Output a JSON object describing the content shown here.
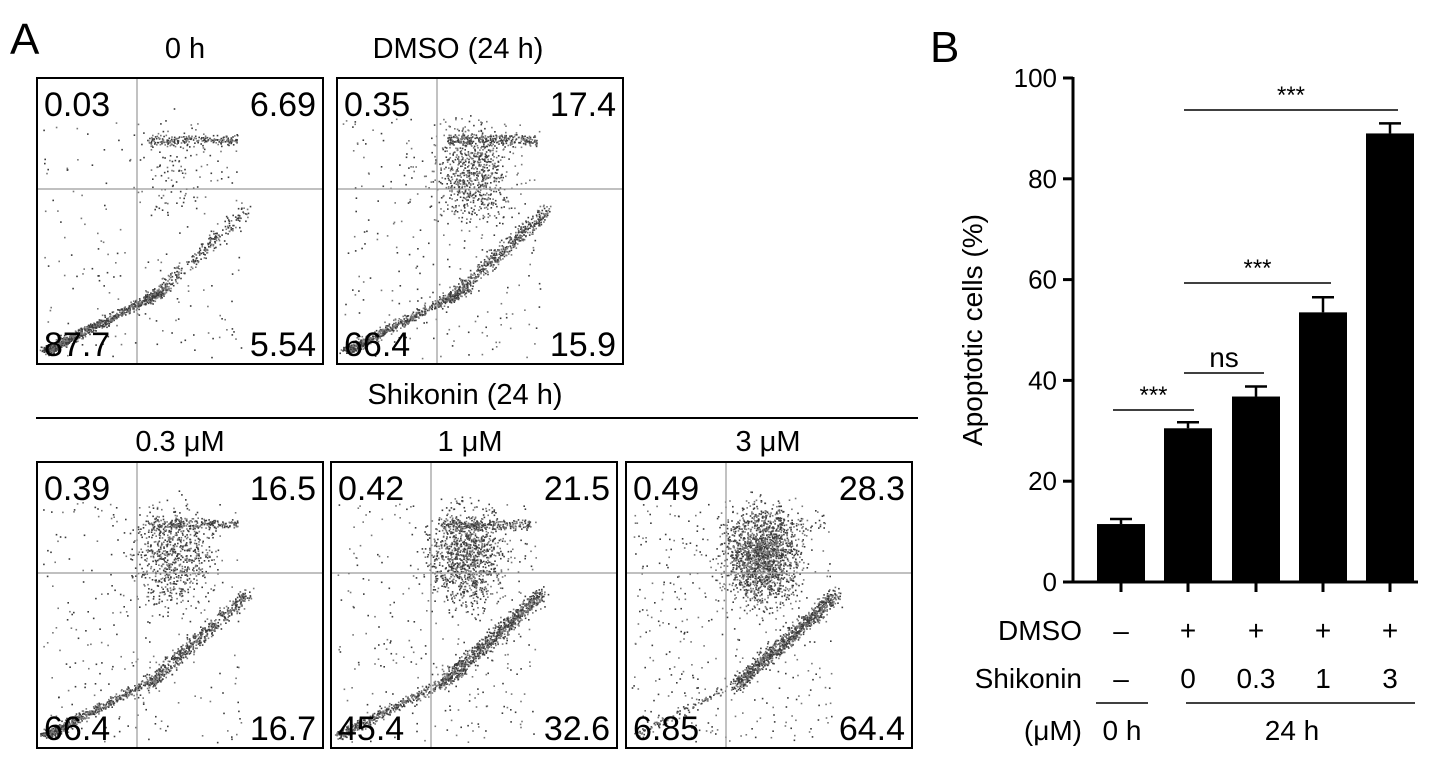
{
  "panel_a": {
    "label": "A",
    "group_label": "Shikonin (24 h)",
    "plots": [
      {
        "title": "0 h",
        "q_ul": "0.03",
        "q_ur": "6.69",
        "q_ll": "87.7",
        "q_lr": "5.54",
        "profile": "ctrl0"
      },
      {
        "title": "DMSO (24 h)",
        "q_ul": "0.35",
        "q_ur": "17.4",
        "q_ll": "66.4",
        "q_lr": "15.9",
        "profile": "dmso"
      },
      {
        "title": "0.3 μM",
        "q_ul": "0.39",
        "q_ur": "16.5",
        "q_ll": "66.4",
        "q_lr": "16.7",
        "profile": "s03"
      },
      {
        "title": "1 μM",
        "q_ul": "0.42",
        "q_ur": "21.5",
        "q_ll": "45.4",
        "q_lr": "32.6",
        "profile": "s1"
      },
      {
        "title": "3 μM",
        "q_ul": "0.49",
        "q_ur": "28.3",
        "q_ll": "6.85",
        "q_lr": "64.4",
        "profile": "s3"
      }
    ]
  },
  "chart_data": {
    "type": "bar",
    "panel_label": "B",
    "ylabel": "Apoptotic cells (%)",
    "ylim": [
      0,
      100
    ],
    "yticks": [
      0,
      20,
      40,
      60,
      80,
      100
    ],
    "categories": [
      "0 h",
      "0",
      "0.3",
      "1",
      "3"
    ],
    "values": [
      11.5,
      30.5,
      36.8,
      53.5,
      89.0
    ],
    "errors": [
      1.0,
      1.2,
      2.0,
      3.0,
      2.0
    ],
    "bar_color": "#000000",
    "rows": {
      "dmso_label": "DMSO",
      "dmso": [
        "–",
        "+",
        "+",
        "+",
        "+"
      ],
      "shikonin_label": "Shikonin",
      "shikonin": [
        "–",
        "0",
        "0.3",
        "1",
        "3"
      ],
      "unit_label": "(μM)",
      "group_0h": "0 h",
      "group_24h": "24 h"
    },
    "comparisons": [
      {
        "from": 0,
        "to": 1,
        "label": "***"
      },
      {
        "from": 1,
        "to": 2,
        "label": "ns"
      },
      {
        "from": 1,
        "to": 3,
        "label": "***"
      },
      {
        "from": 1,
        "to": 4,
        "label": "***"
      }
    ]
  }
}
